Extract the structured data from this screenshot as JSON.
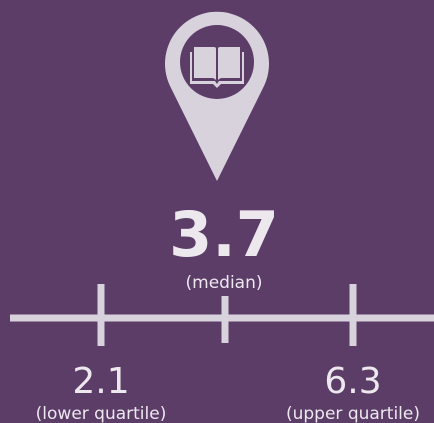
{
  "median": {
    "value": 3.7,
    "label": "(median)"
  },
  "lower_quartile": {
    "value": 2.1,
    "label": "(lower quartile)"
  },
  "upper_quartile": {
    "value": 6.3,
    "label": "(upper quartile)"
  }
}
